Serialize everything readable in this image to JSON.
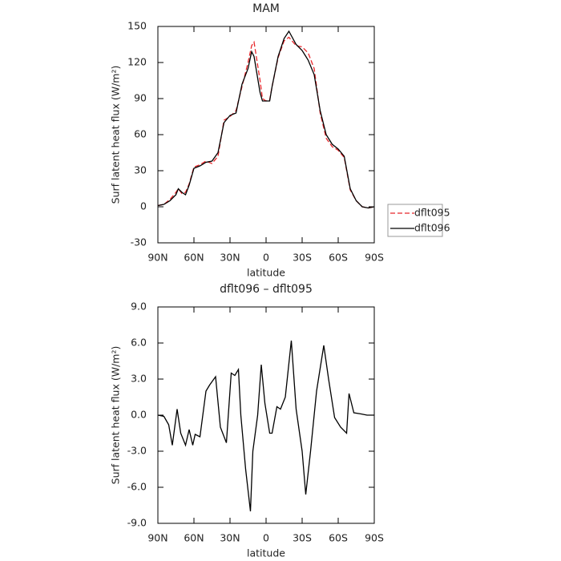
{
  "chart_data": [
    {
      "type": "line",
      "title": "MAM",
      "xlabel": "latitude",
      "ylabel": "Surf latent heat flux (W/m²)",
      "x": [
        90,
        85,
        80,
        75,
        73,
        70,
        67,
        64,
        60,
        55,
        50,
        45,
        40,
        35,
        30,
        25,
        20,
        15,
        12,
        10,
        5,
        3,
        0,
        -3,
        -5,
        -10,
        -15,
        -19,
        -25,
        -30,
        -35,
        -40,
        -45,
        -50,
        -55,
        -60,
        -65,
        -70,
        -75,
        -80,
        -85,
        -90
      ],
      "series": [
        {
          "name": "dflt095",
          "color": "#e8262a",
          "dash": "dashed",
          "values": [
            1,
            2,
            6,
            12,
            15,
            11,
            12,
            19,
            33,
            35,
            38,
            36,
            42,
            72,
            75,
            80,
            100,
            120,
            134,
            137,
            105,
            90,
            88,
            89,
            100,
            124,
            138,
            141,
            134,
            133,
            128,
            115,
            78,
            57,
            50,
            47,
            41,
            14,
            5,
            0,
            -1,
            0
          ]
        },
        {
          "name": "dflt096",
          "color": "#000000",
          "dash": "solid",
          "values": [
            1,
            2,
            5,
            10,
            15,
            12,
            10,
            18,
            32,
            34,
            37,
            38,
            45,
            70,
            76,
            78,
            102,
            115,
            129,
            125,
            95,
            88,
            88,
            88,
            100,
            125,
            140,
            146,
            135,
            130,
            122,
            110,
            80,
            60,
            52,
            48,
            42,
            15,
            5,
            0,
            -1,
            0
          ]
        }
      ],
      "xlim": [
        90,
        -90
      ],
      "xticks": [
        {
          "value": 90,
          "label": "90N"
        },
        {
          "value": 60,
          "label": "60N"
        },
        {
          "value": 30,
          "label": "30N"
        },
        0,
        {
          "value": -30,
          "label": "30S"
        },
        {
          "value": -60,
          "label": "60S"
        },
        {
          "value": -90,
          "label": "90S"
        }
      ],
      "ylim": [
        -30,
        150
      ],
      "yticks": [
        -30,
        0,
        30,
        60,
        90,
        120,
        150
      ],
      "legend": "right"
    },
    {
      "type": "line",
      "title": "dflt096 – dflt095",
      "xlabel": "latitude",
      "ylabel": "Surf latent heat flux (W/m²)",
      "x": [
        90,
        85,
        81,
        78,
        74,
        71,
        67,
        64,
        61,
        59,
        55,
        50,
        47,
        42,
        38,
        33,
        29,
        26,
        23,
        21,
        17,
        13,
        11,
        7,
        4,
        1,
        -3,
        -5,
        -9,
        -12,
        -16,
        -21,
        -25,
        -30,
        -33,
        -37,
        -42,
        -48,
        -52,
        -57,
        -62,
        -67,
        -69,
        -73,
        -79,
        -84,
        -90
      ],
      "series": [
        {
          "name": null,
          "color": "#000000",
          "dash": "solid",
          "values": [
            0,
            -0.1,
            -0.8,
            -2.5,
            0.5,
            -1.5,
            -2.5,
            -1.2,
            -2.5,
            -1.6,
            -1.8,
            2.0,
            2.5,
            3.2,
            -1.0,
            -2.3,
            3.5,
            3.3,
            3.8,
            0,
            -4.5,
            -8.0,
            -3.0,
            0,
            4.2,
            1.0,
            -1.5,
            -1.5,
            0.7,
            0.5,
            1.5,
            6.2,
            0.5,
            -3.0,
            -6.6,
            -3.0,
            2.0,
            5.8,
            3.0,
            -0.2,
            -1.0,
            -1.5,
            1.8,
            0.2,
            0.1,
            0,
            0
          ]
        }
      ],
      "xlim": [
        90,
        -90
      ],
      "xticks": [
        {
          "value": 90,
          "label": "90N"
        },
        {
          "value": 60,
          "label": "60N"
        },
        {
          "value": 30,
          "label": "30N"
        },
        0,
        {
          "value": -30,
          "label": "30S"
        },
        {
          "value": -60,
          "label": "60S"
        },
        {
          "value": -90,
          "label": "90S"
        }
      ],
      "ylim": [
        -9,
        9
      ],
      "yticks": [
        {
          "value": -9,
          "label": "-9.0"
        },
        {
          "value": -6,
          "label": "-6.0"
        },
        {
          "value": -3,
          "label": "-3.0"
        },
        {
          "value": 0,
          "label": "0.0"
        },
        {
          "value": 3,
          "label": "3.0"
        },
        {
          "value": 6,
          "label": "6.0"
        },
        {
          "value": 9,
          "label": "9.0"
        }
      ]
    }
  ]
}
